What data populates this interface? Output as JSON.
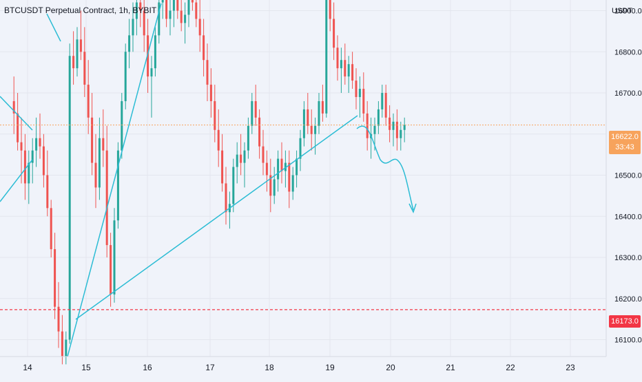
{
  "header": {
    "title": "BTCUSDT Perpetual Contract, 1h, BYBIT"
  },
  "axis": {
    "unit": "USDT",
    "price_ticks": [
      "16900.0",
      "16800.0",
      "16700.0",
      "16500.0",
      "16400.0",
      "16300.0",
      "16200.0",
      "16100.0"
    ],
    "date_ticks": [
      "14",
      "15",
      "16",
      "17",
      "18",
      "19",
      "20",
      "21",
      "22",
      "23"
    ]
  },
  "current_price": {
    "value": "16622.0",
    "countdown": "33:43",
    "color": "#f7a35c"
  },
  "support_level": {
    "value": "16173.0",
    "color": "#f23645"
  },
  "colors": {
    "up": "#26a69a",
    "down": "#ef5350",
    "drawing": "#2bbcd4",
    "background": "#f0f3fa"
  },
  "chart_data": {
    "type": "candlestick",
    "title": "BTCUSDT Perpetual Contract, 1h, BYBIT",
    "xlabel": "",
    "ylabel": "USDT",
    "ylim": [
      16060,
      16960
    ],
    "x_range": [
      "Dec 13 18:00",
      "Dec 23 12:00"
    ],
    "interval": "1h",
    "grid": true,
    "reference_lines": [
      {
        "name": "current",
        "value": 16622.0
      },
      {
        "name": "support",
        "value": 16173.0
      }
    ],
    "ohlc": [
      [
        16680,
        16740,
        16600,
        16650
      ],
      [
        16650,
        16700,
        16560,
        16580
      ],
      [
        16580,
        16640,
        16480,
        16560
      ],
      [
        16560,
        16600,
        16440,
        16480
      ],
      [
        16480,
        16560,
        16430,
        16530
      ],
      [
        16530,
        16590,
        16480,
        16560
      ],
      [
        16560,
        16640,
        16520,
        16590
      ],
      [
        16590,
        16650,
        16540,
        16570
      ],
      [
        16570,
        16600,
        16470,
        16500
      ],
      [
        16500,
        16560,
        16400,
        16420
      ],
      [
        16420,
        16440,
        16300,
        16320
      ],
      [
        16320,
        16360,
        16150,
        16180
      ],
      [
        16180,
        16240,
        16080,
        16120
      ],
      [
        16120,
        16160,
        16040,
        16060
      ],
      [
        16060,
        16120,
        16040,
        16100
      ],
      [
        16100,
        16820,
        16090,
        16790
      ],
      [
        16790,
        16850,
        16720,
        16760
      ],
      [
        16760,
        16860,
        16740,
        16830
      ],
      [
        16830,
        16900,
        16780,
        16800
      ],
      [
        16800,
        16860,
        16690,
        16720
      ],
      [
        16720,
        16780,
        16600,
        16640
      ],
      [
        16640,
        16700,
        16500,
        16530
      ],
      [
        16530,
        16600,
        16420,
        16470
      ],
      [
        16470,
        16640,
        16440,
        16590
      ],
      [
        16590,
        16660,
        16520,
        16560
      ],
      [
        16560,
        16620,
        16300,
        16330
      ],
      [
        16330,
        16360,
        16180,
        16210
      ],
      [
        16210,
        16420,
        16190,
        16390
      ],
      [
        16390,
        16580,
        16370,
        16560
      ],
      [
        16560,
        16700,
        16540,
        16680
      ],
      [
        16680,
        16820,
        16660,
        16800
      ],
      [
        16800,
        16880,
        16760,
        16840
      ],
      [
        16840,
        16920,
        16800,
        16880
      ],
      [
        16880,
        16960,
        16840,
        16920
      ],
      [
        16920,
        16960,
        16860,
        16900
      ],
      [
        16900,
        16950,
        16800,
        16840
      ],
      [
        16840,
        16880,
        16700,
        16740
      ],
      [
        16740,
        16790,
        16640,
        16760
      ],
      [
        16760,
        16860,
        16740,
        16840
      ],
      [
        16840,
        16950,
        16820,
        16920
      ],
      [
        16920,
        16960,
        16880,
        16940
      ],
      [
        16940,
        16960,
        16860,
        16880
      ],
      [
        16880,
        16930,
        16840,
        16900
      ],
      [
        16900,
        16950,
        16860,
        16930
      ],
      [
        16930,
        16960,
        16880,
        16900
      ],
      [
        16900,
        16940,
        16850,
        16870
      ],
      [
        16870,
        16920,
        16820,
        16890
      ],
      [
        16890,
        16960,
        16860,
        16940
      ],
      [
        16940,
        16960,
        16900,
        16920
      ],
      [
        16920,
        16960,
        16860,
        16880
      ],
      [
        16880,
        16930,
        16800,
        16840
      ],
      [
        16840,
        16880,
        16740,
        16780
      ],
      [
        16780,
        16820,
        16680,
        16720
      ],
      [
        16720,
        16760,
        16640,
        16680
      ],
      [
        16680,
        16720,
        16580,
        16610
      ],
      [
        16610,
        16660,
        16520,
        16560
      ],
      [
        16560,
        16600,
        16460,
        16480
      ],
      [
        16480,
        16520,
        16380,
        16410
      ],
      [
        16410,
        16460,
        16370,
        16430
      ],
      [
        16430,
        16540,
        16410,
        16520
      ],
      [
        16520,
        16580,
        16480,
        16550
      ],
      [
        16550,
        16600,
        16500,
        16530
      ],
      [
        16530,
        16580,
        16470,
        16560
      ],
      [
        16560,
        16640,
        16540,
        16620
      ],
      [
        16620,
        16700,
        16600,
        16680
      ],
      [
        16680,
        16720,
        16620,
        16640
      ],
      [
        16640,
        16660,
        16540,
        16570
      ],
      [
        16570,
        16610,
        16500,
        16530
      ],
      [
        16530,
        16560,
        16460,
        16500
      ],
      [
        16500,
        16540,
        16410,
        16450
      ],
      [
        16450,
        16520,
        16430,
        16490
      ],
      [
        16490,
        16560,
        16460,
        16540
      ],
      [
        16540,
        16580,
        16480,
        16510
      ],
      [
        16510,
        16560,
        16470,
        16530
      ],
      [
        16530,
        16560,
        16420,
        16460
      ],
      [
        16460,
        16520,
        16440,
        16500
      ],
      [
        16500,
        16560,
        16470,
        16540
      ],
      [
        16540,
        16610,
        16510,
        16590
      ],
      [
        16590,
        16680,
        16570,
        16660
      ],
      [
        16660,
        16700,
        16600,
        16620
      ],
      [
        16620,
        16660,
        16560,
        16600
      ],
      [
        16600,
        16640,
        16550,
        16620
      ],
      [
        16620,
        16700,
        16600,
        16680
      ],
      [
        16680,
        16720,
        16630,
        16650
      ],
      [
        16650,
        16980,
        16640,
        16950
      ],
      [
        16950,
        16980,
        16850,
        16880
      ],
      [
        16880,
        16920,
        16780,
        16810
      ],
      [
        16810,
        16840,
        16730,
        16760
      ],
      [
        16760,
        16810,
        16700,
        16780
      ],
      [
        16780,
        16820,
        16720,
        16740
      ],
      [
        16740,
        16790,
        16700,
        16770
      ],
      [
        16770,
        16800,
        16710,
        16730
      ],
      [
        16730,
        16760,
        16660,
        16690
      ],
      [
        16690,
        16740,
        16640,
        16710
      ],
      [
        16710,
        16750,
        16630,
        16650
      ],
      [
        16650,
        16680,
        16560,
        16590
      ],
      [
        16590,
        16640,
        16540,
        16600
      ],
      [
        16600,
        16640,
        16560,
        16620
      ],
      [
        16620,
        16680,
        16600,
        16660
      ],
      [
        16660,
        16720,
        16640,
        16700
      ],
      [
        16700,
        16720,
        16620,
        16640
      ],
      [
        16640,
        16670,
        16580,
        16610
      ],
      [
        16610,
        16650,
        16570,
        16630
      ],
      [
        16630,
        16660,
        16560,
        16590
      ],
      [
        16590,
        16630,
        16560,
        16610
      ],
      [
        16610,
        16640,
        16580,
        16622
      ]
    ]
  }
}
